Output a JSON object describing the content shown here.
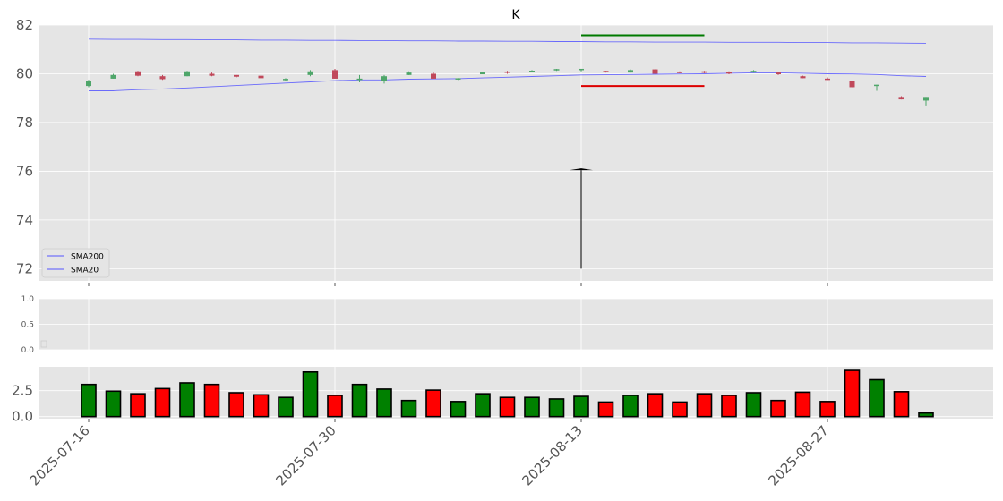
{
  "chart_data": {
    "title": "K",
    "type": "candlestick",
    "dates": [
      "2025-07-16",
      "2025-07-17",
      "2025-07-18",
      "2025-07-21",
      "2025-07-22",
      "2025-07-23",
      "2025-07-24",
      "2025-07-25",
      "2025-07-28",
      "2025-07-29",
      "2025-07-30",
      "2025-07-31",
      "2025-08-01",
      "2025-08-04",
      "2025-08-05",
      "2025-08-06",
      "2025-08-07",
      "2025-08-08",
      "2025-08-11",
      "2025-08-12",
      "2025-08-13",
      "2025-08-14",
      "2025-08-15",
      "2025-08-18",
      "2025-08-19",
      "2025-08-20",
      "2025-08-21",
      "2025-08-22",
      "2025-08-25",
      "2025-08-26",
      "2025-08-27",
      "2025-08-28",
      "2025-08-29",
      "2025-09-02",
      "2025-09-03"
    ],
    "x_tick_labels": [
      "2025-07-16",
      "2025-07-30",
      "2025-08-13",
      "2025-08-27"
    ],
    "ohlc": [
      [
        79.5,
        79.75,
        79.45,
        79.7
      ],
      [
        79.8,
        80.0,
        79.8,
        79.95
      ],
      [
        80.1,
        80.12,
        79.9,
        79.92
      ],
      [
        79.9,
        79.95,
        79.75,
        79.78
      ],
      [
        79.9,
        80.12,
        79.9,
        80.1
      ],
      [
        80.0,
        80.05,
        79.9,
        79.92
      ],
      [
        79.95,
        79.95,
        79.85,
        79.88
      ],
      [
        79.92,
        79.92,
        79.8,
        79.82
      ],
      [
        79.75,
        79.82,
        79.7,
        79.78
      ],
      [
        79.95,
        80.15,
        79.9,
        80.1
      ],
      [
        80.15,
        80.2,
        79.8,
        79.8
      ],
      [
        79.75,
        79.95,
        79.65,
        79.8
      ],
      [
        79.7,
        79.95,
        79.6,
        79.9
      ],
      [
        79.95,
        80.1,
        79.95,
        80.05
      ],
      [
        80.0,
        80.05,
        79.8,
        79.8
      ],
      [
        79.78,
        79.82,
        79.75,
        79.8
      ],
      [
        79.98,
        80.08,
        79.98,
        80.07
      ],
      [
        80.08,
        80.12,
        80.0,
        80.05
      ],
      [
        80.08,
        80.15,
        80.08,
        80.12
      ],
      [
        80.15,
        80.2,
        80.12,
        80.18
      ],
      [
        80.15,
        80.2,
        80.1,
        80.2
      ],
      [
        80.1,
        80.12,
        80.05,
        80.08
      ],
      [
        80.05,
        80.18,
        80.05,
        80.15
      ],
      [
        80.18,
        80.18,
        80.0,
        80.0
      ],
      [
        80.07,
        80.1,
        80.02,
        80.04
      ],
      [
        80.1,
        80.12,
        80.02,
        80.04
      ],
      [
        80.05,
        80.1,
        79.98,
        80.02
      ],
      [
        80.05,
        80.15,
        80.05,
        80.12
      ],
      [
        80.05,
        80.08,
        79.95,
        79.98
      ],
      [
        79.9,
        79.92,
        79.82,
        79.82
      ],
      [
        79.8,
        79.85,
        79.75,
        79.75
      ],
      [
        79.7,
        79.7,
        79.45,
        79.45
      ],
      [
        79.5,
        79.55,
        79.3,
        79.55
      ],
      [
        79.05,
        79.08,
        78.95,
        78.95
      ],
      [
        78.9,
        79.05,
        78.7,
        79.05
      ]
    ],
    "sma20": [
      79.3,
      79.3,
      79.35,
      79.38,
      79.42,
      79.47,
      79.52,
      79.57,
      79.62,
      79.67,
      79.72,
      79.75,
      79.75,
      79.78,
      79.79,
      79.8,
      79.83,
      79.86,
      79.89,
      79.92,
      79.95,
      79.96,
      79.97,
      79.98,
      79.99,
      80.0,
      80.02,
      80.04,
      80.04,
      80.02,
      80.0,
      79.99,
      79.97,
      79.92,
      79.89
    ],
    "sma200": [
      81.42,
      81.41,
      81.41,
      81.4,
      81.4,
      81.39,
      81.39,
      81.38,
      81.38,
      81.37,
      81.37,
      81.36,
      81.36,
      81.35,
      81.35,
      81.34,
      81.34,
      81.33,
      81.33,
      81.32,
      81.32,
      81.31,
      81.31,
      81.3,
      81.3,
      81.3,
      81.29,
      81.29,
      81.29,
      81.28,
      81.28,
      81.27,
      81.27,
      81.26,
      81.25
    ],
    "annotations": {
      "resistance": {
        "value": 81.58,
        "from_index": 20,
        "to_index": 25,
        "color": "#007a00"
      },
      "support": {
        "value": 79.5,
        "from_index": 20,
        "to_index": 25,
        "color": "#dd0000"
      },
      "spike": {
        "index": 20,
        "low": 72.0,
        "high": 76.05
      }
    },
    "main_ylim": [
      71.5,
      82.0
    ],
    "main_yticks": [
      72,
      74,
      76,
      78,
      80,
      82
    ],
    "legend": {
      "placement": "lower-left",
      "entries": [
        "SMA200",
        "SMA20"
      ]
    },
    "middle_ylim": [
      0.0,
      1.0
    ],
    "middle_yticks": [
      "0.0",
      "0.5",
      "1.0"
    ],
    "volume": [
      3.1,
      2.45,
      2.2,
      2.7,
      3.25,
      3.1,
      2.3,
      2.1,
      1.85,
      4.3,
      2.05,
      3.1,
      2.65,
      1.55,
      2.55,
      1.45,
      2.2,
      1.85,
      1.85,
      1.7,
      1.95,
      1.4,
      2.05,
      2.2,
      1.4,
      2.2,
      2.05,
      2.3,
      1.55,
      2.35,
      1.45,
      4.45,
      3.55,
      2.4,
      0.35
    ],
    "volume_ylim": [
      -0.2,
      4.8
    ],
    "volume_yticks": [
      "0.0",
      "2.5"
    ],
    "colors": {
      "up": "#008000",
      "down": "#ff0000",
      "up_candle": "#4fa66a",
      "down_candle": "#c0485a",
      "sma": "#5555ff",
      "background": "#e5e5e5"
    }
  }
}
